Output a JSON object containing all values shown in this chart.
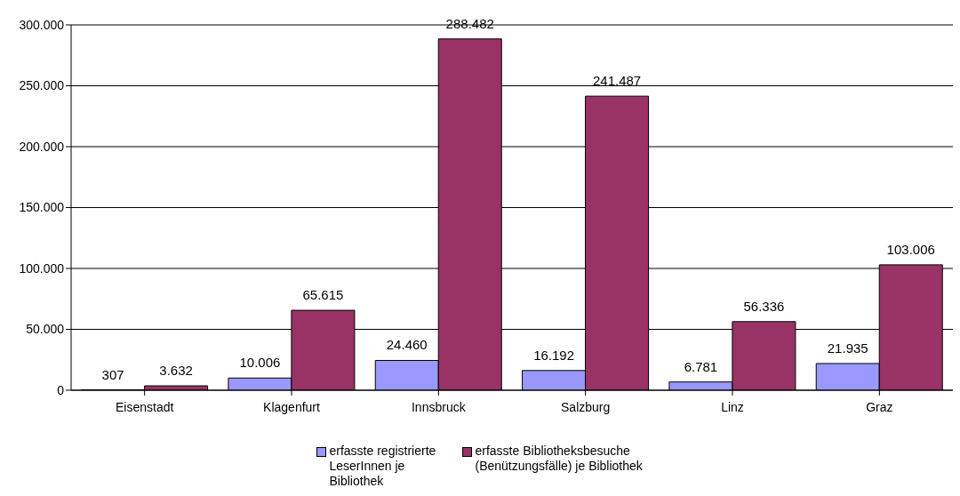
{
  "chart_data": {
    "type": "bar",
    "categories": [
      "Eisenstadt",
      "Klagenfurt",
      "Innsbruck",
      "Salzburg",
      "Linz",
      "Graz"
    ],
    "series": [
      {
        "name": "erfasste registrierte LeserInnen je Bibliothek",
        "color": "#9999ff",
        "values": [
          307,
          10006,
          24460,
          16192,
          6781,
          21935
        ],
        "value_labels": [
          "307",
          "10.006",
          "24.460",
          "16.192",
          "6.781",
          "21.935"
        ]
      },
      {
        "name": "erfasste Bibliotheksbesuche (Benützungsfälle) je Bibliothek",
        "color": "#993366",
        "values": [
          3632,
          65615,
          288482,
          241487,
          56336,
          103006
        ],
        "value_labels": [
          "3.632",
          "65.615",
          "288.482",
          "241.487",
          "56.336",
          "103.006"
        ]
      }
    ],
    "ylim": [
      0,
      300000
    ],
    "yticks": [
      {
        "value": 0,
        "label": "0"
      },
      {
        "value": 50000,
        "label": "50.000"
      },
      {
        "value": 100000,
        "label": "100.000"
      },
      {
        "value": 150000,
        "label": "150.000"
      },
      {
        "value": 200000,
        "label": "200.000"
      },
      {
        "value": 250000,
        "label": "250.000"
      },
      {
        "value": 300000,
        "label": "300.000"
      }
    ],
    "grid": "y",
    "legend": "bottom"
  }
}
